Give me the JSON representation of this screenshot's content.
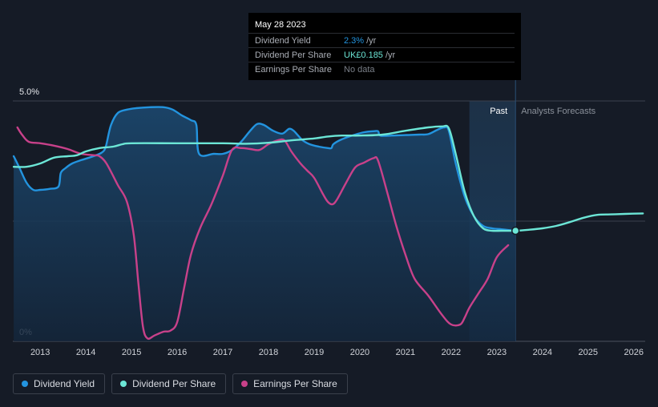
{
  "tooltip": {
    "date": "May 28 2023",
    "rows": [
      {
        "label": "Dividend Yield",
        "value": "2.3%",
        "unit": "/yr",
        "color": "#2394df"
      },
      {
        "label": "Dividend Per Share",
        "value": "UK£0.185",
        "unit": "/yr",
        "color": "#6ce6d6"
      },
      {
        "label": "Earnings Per Share",
        "value": "No data",
        "unit": "",
        "color": "#7a7f88"
      }
    ]
  },
  "regions": {
    "past_label": "Past",
    "forecast_label": "Analysts Forecasts"
  },
  "legend": [
    {
      "label": "Dividend Yield",
      "color": "#2394df"
    },
    {
      "label": "Dividend Per Share",
      "color": "#6ce6d6"
    },
    {
      "label": "Earnings Per Share",
      "color": "#c8418a"
    }
  ],
  "chart_data": {
    "type": "line",
    "y_tick_labels": [
      "5.0%",
      "0%"
    ],
    "ylim": [
      0,
      5.0
    ],
    "x_tick_labels": [
      "2013",
      "2014",
      "2015",
      "2016",
      "2017",
      "2018",
      "2019",
      "2020",
      "2021",
      "2022",
      "2023",
      "2024",
      "2025",
      "2026"
    ],
    "xlim": [
      2012.4,
      2026.25
    ],
    "past_start": 2022.4,
    "forecast_start": 2023.41,
    "series": [
      {
        "name": "Dividend Yield",
        "color": "#2394df",
        "area": true,
        "x": [
          2012.42,
          2012.55,
          2012.7,
          2012.85,
          2013.0,
          2013.2,
          2013.4,
          2013.45,
          2013.55,
          2013.7,
          2013.9,
          2014.1,
          2014.3,
          2014.4,
          2014.45,
          2014.55,
          2014.7,
          2014.9,
          2015.1,
          2015.4,
          2015.7,
          2015.9,
          2016.1,
          2016.3,
          2016.42,
          2016.48,
          2016.8,
          2017.0,
          2017.2,
          2017.4,
          2017.6,
          2017.75,
          2017.9,
          2018.1,
          2018.3,
          2018.45,
          2018.55,
          2018.65,
          2018.75,
          2018.9,
          2019.1,
          2019.3,
          2019.38,
          2019.42,
          2019.6,
          2019.9,
          2020.1,
          2020.3,
          2020.4,
          2020.45,
          2020.7,
          2021.0,
          2021.3,
          2021.5,
          2021.7,
          2021.85,
          2021.95,
          2022.1,
          2022.3,
          2022.5,
          2022.7,
          2022.9,
          2023.1,
          2023.3,
          2023.41
        ],
        "y": [
          3.85,
          3.6,
          3.3,
          3.15,
          3.15,
          3.17,
          3.22,
          3.5,
          3.6,
          3.7,
          3.77,
          3.83,
          3.9,
          3.97,
          4.1,
          4.5,
          4.75,
          4.82,
          4.85,
          4.87,
          4.87,
          4.82,
          4.7,
          4.6,
          4.5,
          3.9,
          3.9,
          3.9,
          3.98,
          4.15,
          4.38,
          4.52,
          4.5,
          4.38,
          4.32,
          4.42,
          4.38,
          4.28,
          4.18,
          4.1,
          4.05,
          4.02,
          4.02,
          4.1,
          4.2,
          4.3,
          4.35,
          4.37,
          4.37,
          4.28,
          4.28,
          4.29,
          4.3,
          4.31,
          4.4,
          4.45,
          4.38,
          3.7,
          3.0,
          2.6,
          2.4,
          2.35,
          2.33,
          2.31,
          2.3
        ]
      },
      {
        "name": "Dividend Per Share",
        "color": "#6ce6d6",
        "area": false,
        "x": [
          2012.42,
          2012.7,
          2013.0,
          2013.3,
          2013.6,
          2013.8,
          2014.0,
          2014.3,
          2014.6,
          2014.8,
          2015.0,
          2016.0,
          2017.0,
          2017.5,
          2018.0,
          2018.5,
          2019.0,
          2019.3,
          2019.6,
          2020.0,
          2020.5,
          2021.0,
          2021.5,
          2021.8,
          2021.95,
          2022.1,
          2022.3,
          2022.5,
          2022.7,
          2022.9,
          2023.1,
          2023.41,
          2023.7,
          2024.0,
          2024.3,
          2024.6,
          2024.9,
          2025.2,
          2025.5,
          2025.8,
          2026.2
        ],
        "y": [
          3.63,
          3.63,
          3.7,
          3.82,
          3.85,
          3.87,
          3.95,
          4.02,
          4.05,
          4.1,
          4.12,
          4.12,
          4.12,
          4.11,
          4.13,
          4.18,
          4.22,
          4.26,
          4.28,
          4.28,
          4.3,
          4.38,
          4.45,
          4.47,
          4.43,
          3.9,
          3.1,
          2.6,
          2.35,
          2.3,
          2.3,
          2.3,
          2.32,
          2.35,
          2.4,
          2.48,
          2.57,
          2.63,
          2.64,
          2.65,
          2.66
        ]
      },
      {
        "name": "Earnings Per Share",
        "color": "#c8418a",
        "area": false,
        "x": [
          2012.5,
          2012.6,
          2012.75,
          2013.0,
          2013.3,
          2013.6,
          2013.9,
          2014.2,
          2014.3,
          2014.45,
          2014.7,
          2014.9,
          2015.05,
          2015.15,
          2015.25,
          2015.35,
          2015.5,
          2015.7,
          2015.85,
          2016.0,
          2016.15,
          2016.3,
          2016.5,
          2016.75,
          2017.0,
          2017.2,
          2017.4,
          2017.6,
          2017.8,
          2018.0,
          2018.2,
          2018.35,
          2018.5,
          2018.7,
          2018.85,
          2019.0,
          2019.2,
          2019.3,
          2019.4,
          2019.5,
          2019.7,
          2019.9,
          2020.1,
          2020.3,
          2020.4,
          2020.6,
          2020.8,
          2021.0,
          2021.2,
          2021.5,
          2021.8,
          2022.0,
          2022.2,
          2022.3,
          2022.4,
          2022.6,
          2022.8,
          2023.0,
          2023.25
        ],
        "y": [
          4.45,
          4.3,
          4.15,
          4.12,
          4.07,
          4.0,
          3.9,
          3.87,
          3.85,
          3.7,
          3.25,
          2.9,
          2.2,
          1.2,
          0.3,
          0.06,
          0.12,
          0.2,
          0.22,
          0.4,
          1.1,
          1.8,
          2.35,
          2.85,
          3.45,
          3.98,
          4.02,
          4.0,
          3.98,
          4.1,
          4.18,
          4.18,
          3.95,
          3.7,
          3.55,
          3.4,
          3.05,
          2.9,
          2.85,
          2.95,
          3.3,
          3.62,
          3.72,
          3.81,
          3.76,
          3.1,
          2.4,
          1.8,
          1.3,
          0.95,
          0.55,
          0.35,
          0.35,
          0.5,
          0.7,
          1.0,
          1.3,
          1.75,
          2.0
        ]
      }
    ],
    "highlight_point": {
      "x": 2023.41,
      "y": 2.3
    }
  }
}
